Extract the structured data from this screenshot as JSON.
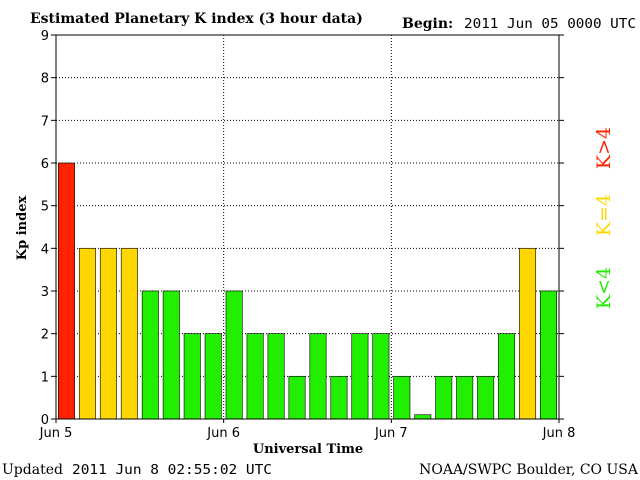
{
  "chart_data": {
    "type": "bar",
    "title": "Estimated Planetary K index (3 hour data)",
    "begin_label": "Begin:",
    "begin_value": "2011 Jun 05 0000 UTC",
    "ylabel": "Kp index",
    "xlabel": "Universal Time",
    "ylim": [
      0,
      9
    ],
    "yticks": [
      "0",
      "1",
      "2",
      "3",
      "4",
      "5",
      "6",
      "7",
      "8",
      "9"
    ],
    "xticks": [
      "Jun 5",
      "Jun 6",
      "Jun 7",
      "Jun 8"
    ],
    "grid": true,
    "values": [
      6,
      4,
      4,
      4,
      3,
      3,
      2,
      2,
      3,
      2,
      2,
      1,
      2,
      1,
      2,
      2,
      1,
      0.1,
      1,
      1,
      1,
      2,
      4,
      3
    ],
    "colors": {
      "low": "#22ee00",
      "mid": "#ffd700",
      "high": "#ff2200"
    },
    "legend": {
      "low": "K<4",
      "mid": "K=4",
      "high": "K>4"
    }
  },
  "footer": {
    "updated_label": "Updated",
    "updated_value": "2011 Jun  8 02:55:02 UTC",
    "credit": "NOAA/SWPC Boulder, CO USA"
  }
}
